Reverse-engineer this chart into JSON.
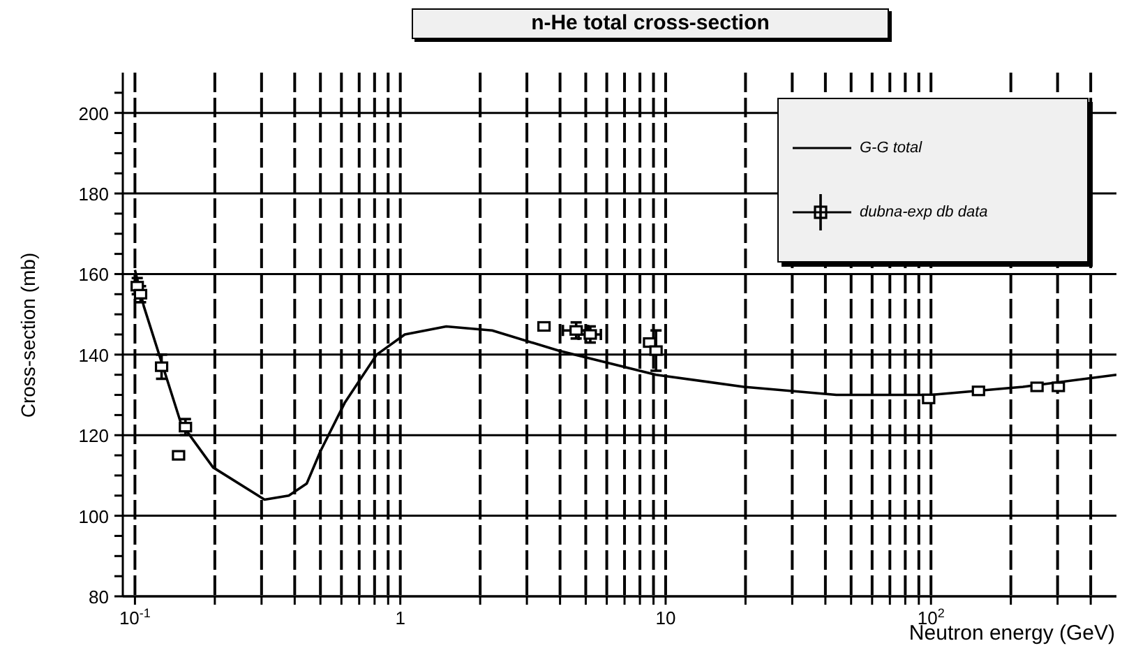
{
  "chart_data": {
    "type": "line",
    "title": "n-He total cross-section",
    "xlabel": "Neutron energy (GeV)",
    "ylabel": "Cross-section (mb)",
    "log": "x",
    "grid": true,
    "legend": "top right",
    "xlim": [
      0.09,
      500
    ],
    "ylim": [
      80,
      210
    ],
    "xticks": [
      {
        "value": 0.1,
        "label": "10$^{-1}$"
      },
      {
        "value": 0.2,
        "label": null
      },
      {
        "value": 0.3,
        "label": null
      },
      {
        "value": 0.4,
        "label": null
      },
      {
        "value": 0.5,
        "label": null
      },
      {
        "value": 0.6,
        "label": null
      },
      {
        "value": 0.7,
        "label": null
      },
      {
        "value": 0.8,
        "label": null
      },
      {
        "value": 0.9,
        "label": null
      },
      1,
      {
        "value": 2,
        "label": null
      },
      {
        "value": 3,
        "label": null
      },
      {
        "value": 4,
        "label": null
      },
      {
        "value": 5,
        "label": null
      },
      {
        "value": 6,
        "label": null
      },
      {
        "value": 7,
        "label": null
      },
      {
        "value": 8,
        "label": null
      },
      {
        "value": 9,
        "label": null
      },
      10,
      {
        "value": 20,
        "label": null
      },
      {
        "value": 30,
        "label": null
      },
      {
        "value": 40,
        "label": null
      },
      {
        "value": 50,
        "label": null
      },
      {
        "value": 60,
        "label": null
      },
      {
        "value": 70,
        "label": null
      },
      {
        "value": 80,
        "label": null
      },
      {
        "value": 90,
        "label": null
      },
      {
        "value": 100,
        "label": "10$^{2}$"
      },
      {
        "value": 200,
        "label": null
      },
      {
        "value": 300,
        "label": null
      },
      {
        "value": 400,
        "label": null
      }
    ],
    "yticks": [
      80,
      {
        "value": 85,
        "label": null
      },
      {
        "value": 90,
        "label": null
      },
      {
        "value": 95,
        "label": null
      },
      100,
      {
        "value": 105,
        "label": null
      },
      {
        "value": 110,
        "label": null
      },
      {
        "value": 115,
        "label": null
      },
      120,
      {
        "value": 125,
        "label": null
      },
      {
        "value": 130,
        "label": null
      },
      {
        "value": 135,
        "label": null
      },
      140,
      {
        "value": 145,
        "label": null
      },
      {
        "value": 150,
        "label": null
      },
      {
        "value": 155,
        "label": null
      },
      160,
      {
        "value": 165,
        "label": null
      },
      {
        "value": 170,
        "label": null
      },
      {
        "value": 175,
        "label": null
      },
      180,
      {
        "value": 185,
        "label": null
      },
      {
        "value": 190,
        "label": null
      },
      {
        "value": 195,
        "label": null
      },
      200,
      {
        "value": 205,
        "label": null
      }
    ],
    "series": [
      {
        "name": "G-G total",
        "type": "line",
        "color": "#000000",
        "marker": "none",
        "line_style": "solid",
        "x": [
          0.1,
          0.108,
          0.149,
          0.197,
          0.308,
          0.38,
          0.444,
          0.5,
          0.617,
          0.815,
          1.04,
          1.49,
          2.22,
          3.94,
          9.2,
          19.7,
          44,
          100,
          222,
          500
        ],
        "values": [
          161,
          152,
          123,
          112,
          104,
          105,
          108,
          116,
          128,
          140,
          145,
          147,
          146,
          141,
          135,
          132,
          130,
          130,
          132,
          135
        ]
      },
      {
        "name": "dubna-exp db data",
        "type": "scatter",
        "color": "#000000",
        "marker": "square",
        "x": [
          0.102,
          0.105,
          0.126,
          0.146,
          0.155,
          3.48,
          4.6,
          5.2,
          8.7,
          9.2,
          98,
          151,
          251,
          302
        ],
        "values": [
          157,
          155,
          137,
          115,
          122,
          147,
          146,
          145,
          143,
          141,
          129,
          131,
          132,
          132
        ],
        "errors": [
          2,
          2,
          3,
          null,
          2,
          null,
          2,
          2,
          null,
          5,
          null,
          null,
          null,
          null
        ],
        "xerrors": [
          null,
          null,
          null,
          null,
          null,
          null,
          0.5,
          0.5,
          null,
          null,
          null,
          null,
          null,
          null
        ]
      }
    ]
  }
}
